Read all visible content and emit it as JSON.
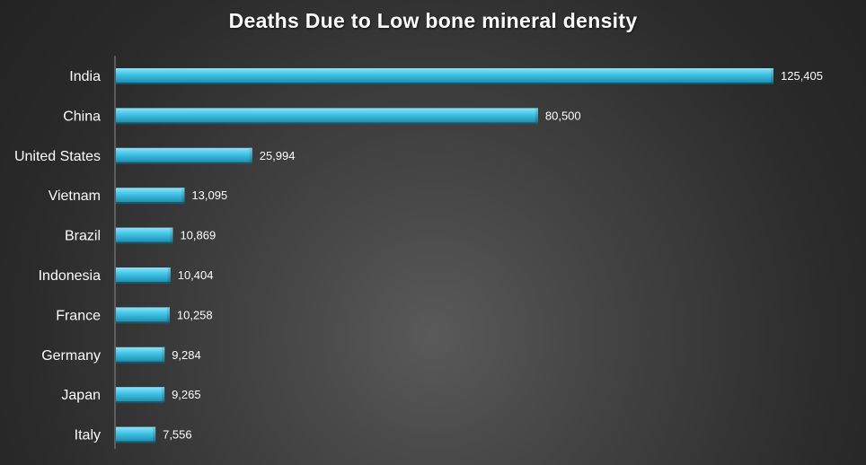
{
  "chart_data": {
    "type": "bar",
    "orientation": "horizontal",
    "title": "Deaths Due to Low bone mineral density",
    "categories": [
      "India",
      "China",
      "United States",
      "Vietnam",
      "Brazil",
      "Indonesia",
      "France",
      "Germany",
      "Japan",
      "Italy"
    ],
    "values": [
      125405,
      80500,
      25994,
      13095,
      10869,
      10404,
      10258,
      9284,
      9265,
      7556
    ],
    "value_labels": [
      "125,405",
      "80,500",
      "25,994",
      "13,095",
      "10,869",
      "10,404",
      "10,258",
      "9,284",
      "9,265",
      "7,556"
    ],
    "xlim": [
      0,
      125405
    ],
    "grid": false,
    "legend": "none",
    "colors": {
      "bar": "#3fc3e6",
      "bar_dark": "#1f8fb0",
      "background": "#2a2a2a",
      "text": "#ffffff"
    }
  }
}
